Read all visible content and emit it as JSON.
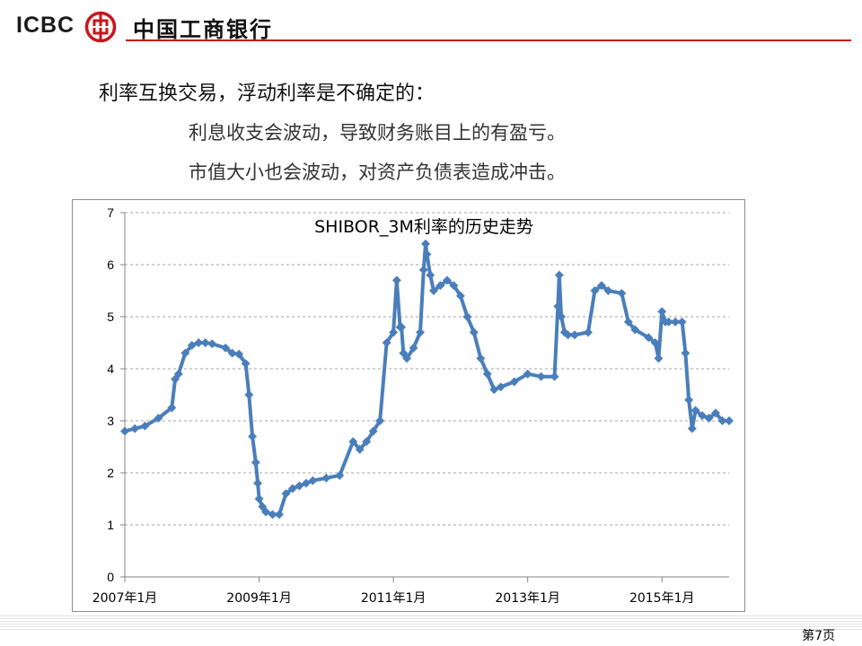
{
  "header": {
    "logo_text": "ICBC",
    "bank_name": "中国工商银行",
    "brand_color": "#c9161c"
  },
  "body": {
    "line1": "利率互换交易，浮动利率是不确定的：",
    "line2": "利息收支会波动，导致财务账目上的有盈亏。",
    "line3": "市值大小也会波动，对资产负债表造成冲击。"
  },
  "chart_data": {
    "type": "line",
    "title": "SHIBOR_3M利率的历史走势",
    "xlabel": "",
    "ylabel": "",
    "xlim": [
      2007.0,
      2016.0
    ],
    "ylim": [
      0,
      7
    ],
    "yticks": [
      0,
      1,
      2,
      3,
      4,
      5,
      6,
      7
    ],
    "xticks": [
      {
        "value": 2007.0,
        "label": "2007年1月"
      },
      {
        "value": 2009.0,
        "label": "2009年1月"
      },
      {
        "value": 2011.0,
        "label": "2011年1月"
      },
      {
        "value": 2013.0,
        "label": "2013年1月"
      },
      {
        "value": 2015.0,
        "label": "2015年1月"
      }
    ],
    "grid": true,
    "legend": "none",
    "series_color": "#4a7ebb",
    "series": [
      {
        "x": [
          2007.0,
          2007.15,
          2007.3,
          2007.5,
          2007.7,
          2007.75,
          2007.8,
          2007.9,
          2008.0,
          2008.1,
          2008.2,
          2008.3,
          2008.5,
          2008.6,
          2008.7,
          2008.8,
          2008.85,
          2008.9,
          2008.95,
          2008.98,
          2009.0,
          2009.05,
          2009.1,
          2009.2,
          2009.3,
          2009.4,
          2009.5,
          2009.6,
          2009.7,
          2009.8,
          2010.0,
          2010.2,
          2010.4,
          2010.5,
          2010.6,
          2010.7,
          2010.8,
          2010.9,
          2011.0,
          2011.05,
          2011.1,
          2011.12,
          2011.15,
          2011.2,
          2011.3,
          2011.4,
          2011.45,
          2011.48,
          2011.5,
          2011.55,
          2011.6,
          2011.7,
          2011.8,
          2011.9,
          2012.0,
          2012.1,
          2012.2,
          2012.3,
          2012.4,
          2012.5,
          2012.6,
          2012.8,
          2013.0,
          2013.2,
          2013.4,
          2013.45,
          2013.47,
          2013.5,
          2013.55,
          2013.6,
          2013.7,
          2013.9,
          2014.0,
          2014.1,
          2014.2,
          2014.4,
          2014.5,
          2014.6,
          2014.8,
          2014.9,
          2014.95,
          2015.0,
          2015.05,
          2015.1,
          2015.2,
          2015.3,
          2015.35,
          2015.4,
          2015.45,
          2015.5,
          2015.6,
          2015.7,
          2015.8,
          2015.9,
          2016.0
        ],
        "values": [
          2.8,
          2.85,
          2.9,
          3.05,
          3.25,
          3.8,
          3.9,
          4.3,
          4.45,
          4.5,
          4.5,
          4.48,
          4.4,
          4.3,
          4.28,
          4.1,
          3.5,
          2.7,
          2.2,
          1.8,
          1.5,
          1.35,
          1.25,
          1.2,
          1.2,
          1.6,
          1.7,
          1.75,
          1.8,
          1.85,
          1.9,
          1.95,
          2.6,
          2.45,
          2.6,
          2.8,
          3.0,
          4.5,
          4.7,
          5.7,
          4.8,
          4.8,
          4.3,
          4.2,
          4.4,
          4.7,
          5.9,
          6.4,
          6.2,
          5.8,
          5.5,
          5.6,
          5.7,
          5.6,
          5.4,
          5.0,
          4.7,
          4.2,
          3.9,
          3.6,
          3.65,
          3.75,
          3.9,
          3.85,
          3.85,
          5.2,
          5.8,
          5.0,
          4.7,
          4.65,
          4.65,
          4.7,
          5.5,
          5.6,
          5.5,
          5.45,
          4.9,
          4.75,
          4.6,
          4.5,
          4.2,
          5.1,
          4.9,
          4.9,
          4.9,
          4.9,
          4.3,
          3.4,
          2.85,
          3.2,
          3.1,
          3.05,
          3.15,
          3.0,
          3.0
        ]
      }
    ]
  },
  "footer": {
    "page_label": "第7页"
  }
}
